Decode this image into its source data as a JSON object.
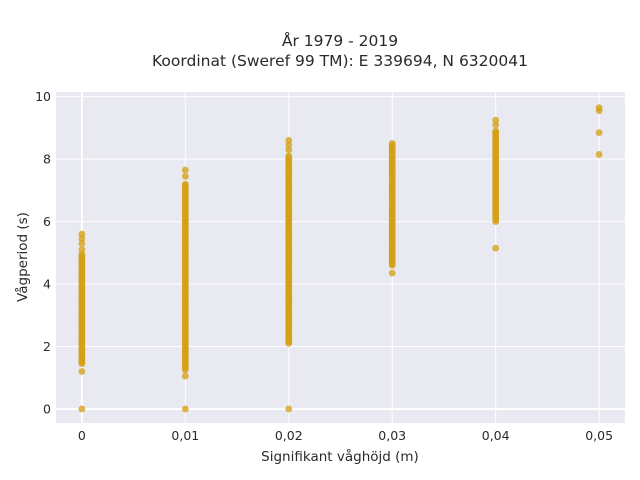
{
  "chart_data": {
    "type": "scatter",
    "title": "År 1979 - 2019",
    "subtitle": "Koordinat (Sweref 99 TM): E 339694, N 6320041",
    "xlabel": "Signifikant våghöjd (m)",
    "ylabel": "Vågperiod (s)",
    "xlim": [
      -0.0025,
      0.0525
    ],
    "ylim": [
      -0.45,
      10.15
    ],
    "x_ticks": [
      0,
      0.01,
      0.02,
      0.03,
      0.04,
      0.05
    ],
    "x_tick_labels": [
      "0",
      "0,01",
      "0,02",
      "0,03",
      "0,04",
      "0,05"
    ],
    "y_ticks": [
      0,
      2,
      4,
      6,
      8,
      10
    ],
    "y_tick_labels": [
      "0",
      "2",
      "4",
      "6",
      "8",
      "10"
    ],
    "grid": true,
    "legend": false,
    "colors": {
      "marker": "#d4a017",
      "plot_bg": "#e9e9f1",
      "grid": "#ffffff"
    },
    "series": [
      {
        "columns": [
          {
            "x": 0,
            "band": [
              1.45,
              4.95
            ],
            "extra": [
              0,
              1.2,
              5.1,
              5.3,
              5.45,
              5.6
            ]
          },
          {
            "x": 0.01,
            "band": [
              1.25,
              7.2
            ],
            "extra": [
              0,
              1.05,
              7.45,
              7.65
            ]
          },
          {
            "x": 0.02,
            "band": [
              2.1,
              8.1
            ],
            "extra": [
              0,
              8.3,
              8.45,
              8.6
            ]
          },
          {
            "x": 0.03,
            "band": [
              4.6,
              8.5
            ],
            "extra": [
              4.35
            ]
          },
          {
            "x": 0.04,
            "band": [
              6.0,
              8.9
            ],
            "extra": [
              5.15,
              9.1,
              9.25
            ]
          },
          {
            "x": 0.05,
            "band": null,
            "extra": [
              8.15,
              8.85,
              9.55,
              9.65
            ]
          }
        ]
      }
    ]
  }
}
